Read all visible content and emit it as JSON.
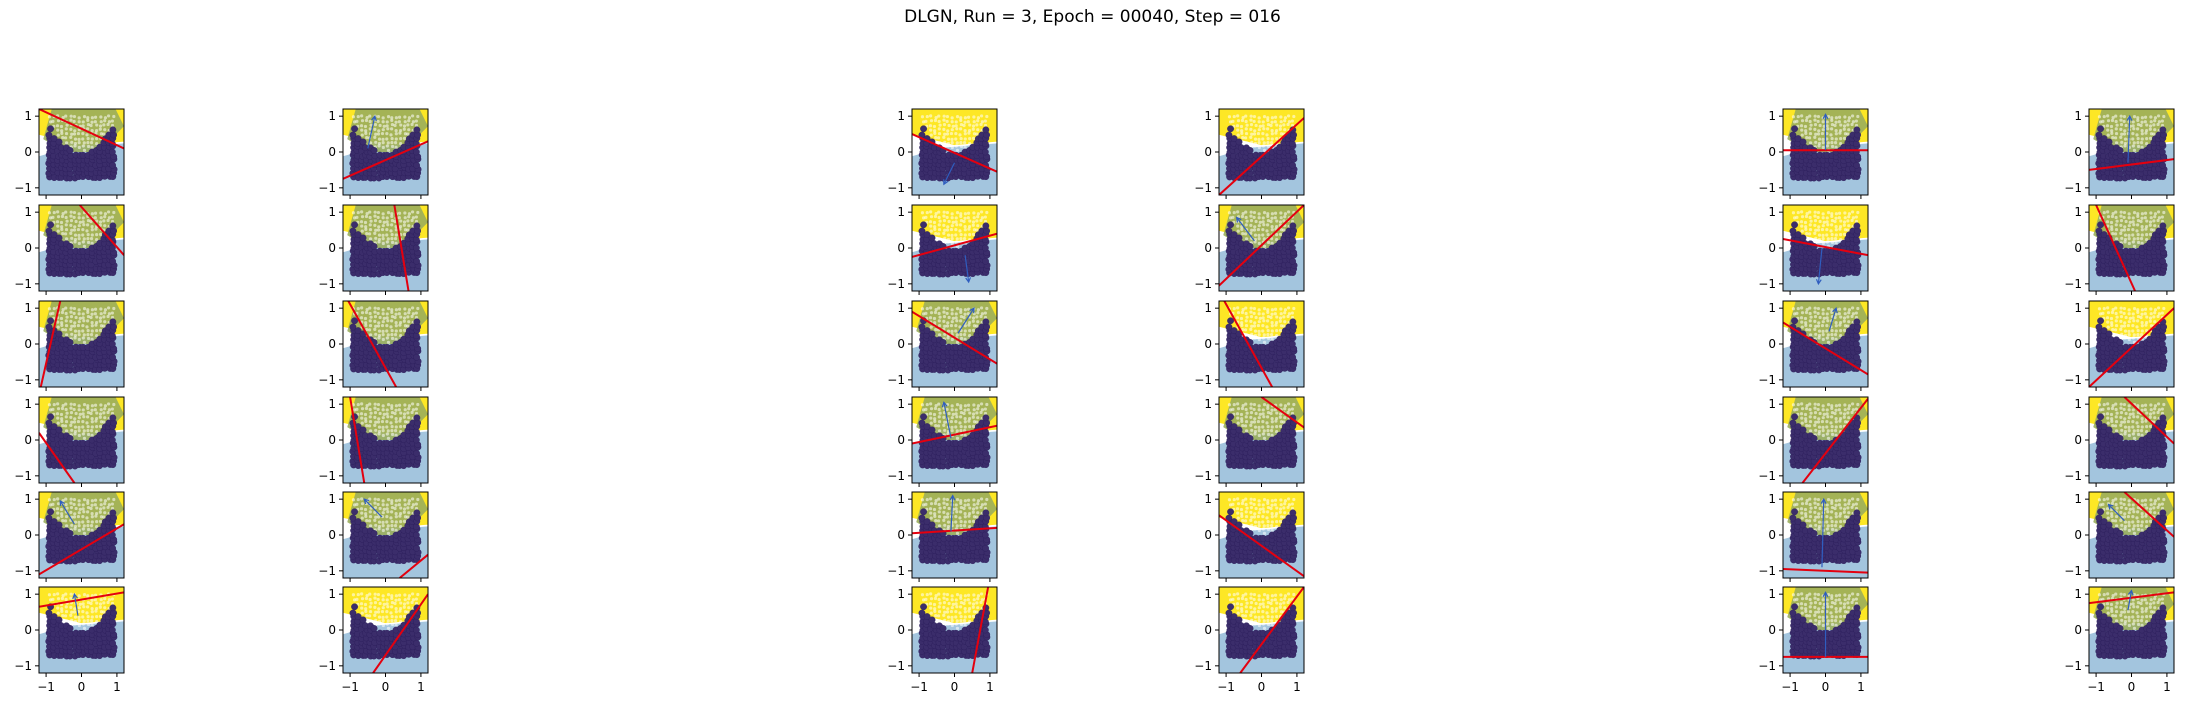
{
  "title": "DLGN, Run = 3, Epoch = 00040, Step = 016",
  "colors": {
    "point": "#3b2d6b",
    "point_stroke": "#2b1d5a",
    "yellow": "#fde725",
    "green": "#9aad5c",
    "blue_region": "#9ec2dc",
    "red_line": "#e4000f",
    "arrow": "#2f5dbf",
    "frame": "#000000"
  },
  "chart_data": {
    "type": "scatter",
    "grid": false,
    "legend": "none",
    "rows": 6,
    "cols": 6,
    "xlim": [
      -1.2,
      1.2
    ],
    "ylim": [
      -1.2,
      1.2
    ],
    "xticks": [
      -1,
      0,
      1
    ],
    "yticks": [
      -1,
      0,
      1
    ],
    "xtick_labels": [
      "−1",
      "0",
      "1"
    ],
    "ytick_labels": [
      "−1",
      "0",
      "1"
    ],
    "panels": [
      {
        "line": [
          [
            -1.2,
            1.2
          ],
          [
            1.2,
            0.1
          ]
        ],
        "arrow": null,
        "green": true
      },
      {
        "line": [
          [
            -1.2,
            -0.75
          ],
          [
            1.2,
            0.3
          ]
        ],
        "arrow": [
          [
            -0.5,
            0.1
          ],
          [
            -0.3,
            1.0
          ]
        ],
        "green": true
      },
      {
        "line": [
          [
            -1.2,
            0.5
          ],
          [
            1.2,
            -0.55
          ]
        ],
        "arrow": [
          [
            0.0,
            -0.3
          ],
          [
            -0.3,
            -0.9
          ]
        ],
        "green": false
      },
      {
        "line": [
          [
            -1.2,
            -1.2
          ],
          [
            1.2,
            0.95
          ]
        ],
        "arrow": null,
        "green": false
      },
      {
        "line": [
          [
            -1.2,
            0.05
          ],
          [
            1.2,
            0.05
          ]
        ],
        "arrow": [
          [
            0.0,
            0.05
          ],
          [
            0.0,
            1.05
          ]
        ],
        "green": true
      },
      {
        "line": [
          [
            -1.2,
            -0.5
          ],
          [
            1.2,
            -0.2
          ]
        ],
        "arrow": [
          [
            -0.1,
            -0.3
          ],
          [
            -0.05,
            1.0
          ]
        ],
        "green": true
      },
      {
        "line": [
          [
            -0.05,
            1.2
          ],
          [
            1.2,
            -0.2
          ]
        ],
        "arrow": null,
        "green": true
      },
      {
        "line": [
          [
            0.25,
            1.2
          ],
          [
            0.65,
            -1.2
          ]
        ],
        "arrow": null,
        "green": true
      },
      {
        "line": [
          [
            -1.2,
            -0.25
          ],
          [
            1.2,
            0.4
          ]
        ],
        "arrow": [
          [
            0.3,
            -0.2
          ],
          [
            0.4,
            -0.95
          ]
        ],
        "green": false
      },
      {
        "line": [
          [
            -1.2,
            -1.05
          ],
          [
            1.2,
            1.2
          ]
        ],
        "arrow": [
          [
            -0.2,
            0.2
          ],
          [
            -0.7,
            0.85
          ]
        ],
        "green": true
      },
      {
        "line": [
          [
            -1.2,
            0.25
          ],
          [
            1.2,
            -0.2
          ]
        ],
        "arrow": [
          [
            -0.1,
            0.0
          ],
          [
            -0.2,
            -1.0
          ]
        ],
        "green": false
      },
      {
        "line": [
          [
            -1.0,
            1.2
          ],
          [
            0.1,
            -1.2
          ]
        ],
        "arrow": null,
        "green": true
      },
      {
        "line": [
          [
            -1.15,
            -1.2
          ],
          [
            -0.6,
            1.2
          ]
        ],
        "arrow": null,
        "green": true
      },
      {
        "line": [
          [
            -1.05,
            1.2
          ],
          [
            0.3,
            -1.2
          ]
        ],
        "arrow": null,
        "green": true
      },
      {
        "line": [
          [
            -1.2,
            0.9
          ],
          [
            1.2,
            -0.55
          ]
        ],
        "arrow": [
          [
            0.1,
            0.3
          ],
          [
            0.55,
            1.0
          ]
        ],
        "green": true
      },
      {
        "line": [
          [
            -1.05,
            1.2
          ],
          [
            0.3,
            -1.2
          ]
        ],
        "arrow": null,
        "green": false
      },
      {
        "line": [
          [
            -1.2,
            0.6
          ],
          [
            1.2,
            -0.85
          ]
        ],
        "arrow": [
          [
            0.1,
            0.35
          ],
          [
            0.3,
            1.0
          ]
        ],
        "green": true
      },
      {
        "line": [
          [
            -1.2,
            -1.2
          ],
          [
            1.2,
            1.0
          ]
        ],
        "arrow": null,
        "green": false
      },
      {
        "line": [
          [
            -1.2,
            0.2
          ],
          [
            -0.2,
            -1.2
          ]
        ],
        "arrow": null,
        "green": true
      },
      {
        "line": [
          [
            -1.0,
            1.2
          ],
          [
            -0.6,
            -1.2
          ]
        ],
        "arrow": null,
        "green": true
      },
      {
        "line": [
          [
            -1.2,
            -0.1
          ],
          [
            1.2,
            0.4
          ]
        ],
        "arrow": [
          [
            -0.1,
            0.05
          ],
          [
            -0.3,
            1.05
          ]
        ],
        "green": true
      },
      {
        "line": [
          [
            0.0,
            1.2
          ],
          [
            1.2,
            0.35
          ]
        ],
        "arrow": null,
        "green": true
      },
      {
        "line": [
          [
            -0.65,
            -1.2
          ],
          [
            1.2,
            1.15
          ]
        ],
        "arrow": null,
        "green": true
      },
      {
        "line": [
          [
            -0.2,
            1.2
          ],
          [
            1.2,
            -0.1
          ]
        ],
        "arrow": null,
        "green": true
      },
      {
        "line": [
          [
            -1.2,
            -1.1
          ],
          [
            1.2,
            0.3
          ]
        ],
        "arrow": [
          [
            -0.2,
            0.3
          ],
          [
            -0.6,
            0.95
          ]
        ],
        "green": true
      },
      {
        "line": [
          [
            0.4,
            -1.2
          ],
          [
            1.2,
            -0.55
          ]
        ],
        "arrow": [
          [
            -0.1,
            0.5
          ],
          [
            -0.6,
            1.0
          ]
        ],
        "green": true
      },
      {
        "line": [
          [
            -1.2,
            0.05
          ],
          [
            1.2,
            0.2
          ]
        ],
        "arrow": [
          [
            -0.1,
            0.1
          ],
          [
            -0.05,
            1.1
          ]
        ],
        "green": true
      },
      {
        "line": [
          [
            -1.2,
            0.55
          ],
          [
            1.2,
            -1.15
          ]
        ],
        "arrow": null,
        "green": false
      },
      {
        "line": [
          [
            -1.2,
            -0.95
          ],
          [
            1.2,
            -1.05
          ]
        ],
        "arrow": [
          [
            -0.1,
            -0.9
          ],
          [
            -0.05,
            1.0
          ]
        ],
        "green": true
      },
      {
        "line": [
          [
            -0.2,
            1.2
          ],
          [
            1.2,
            -0.05
          ]
        ],
        "arrow": [
          [
            -0.2,
            0.4
          ],
          [
            -0.65,
            0.85
          ]
        ],
        "green": true
      },
      {
        "line": [
          [
            -1.2,
            0.65
          ],
          [
            1.2,
            1.05
          ]
        ],
        "arrow": [
          [
            -0.1,
            0.4
          ],
          [
            -0.2,
            1.0
          ]
        ],
        "green": false
      },
      {
        "line": [
          [
            -0.35,
            -1.2
          ],
          [
            1.2,
            1.0
          ]
        ],
        "arrow": null,
        "green": false
      },
      {
        "line": [
          [
            0.5,
            -1.2
          ],
          [
            0.95,
            1.2
          ]
        ],
        "arrow": null,
        "green": false
      },
      {
        "line": [
          [
            -0.6,
            -1.2
          ],
          [
            1.2,
            1.2
          ]
        ],
        "arrow": null,
        "green": false
      },
      {
        "line": [
          [
            -1.2,
            -0.75
          ],
          [
            1.2,
            -0.75
          ]
        ],
        "arrow": [
          [
            0.0,
            -0.75
          ],
          [
            0.0,
            1.05
          ]
        ],
        "green": true
      },
      {
        "line": [
          [
            -1.2,
            0.75
          ],
          [
            1.2,
            1.05
          ]
        ],
        "arrow": [
          [
            -0.1,
            0.55
          ],
          [
            0.0,
            1.1
          ]
        ],
        "green": true
      }
    ]
  }
}
